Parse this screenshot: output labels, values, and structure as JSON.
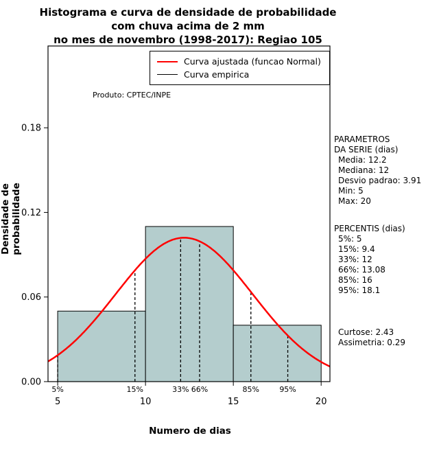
{
  "title": {
    "line1": "Histograma e curva de densidade de probabilidade",
    "line2": "com chuva acima de 2 mm",
    "line3": "no mes de novembro (1998-2017): Regiao 105"
  },
  "axes": {
    "ylabel": "Densidade de probabilidade",
    "xlabel": "Numero de dias"
  },
  "legend": {
    "fitted": "Curva ajustada (funcao Normal)",
    "empirical": "Curva empirica"
  },
  "product_note": "Produto: CPTEC/INPE",
  "stats_panel": {
    "params_title1": "PARAMETROS",
    "params_title2": "DA SERIE (dias)",
    "params": [
      "Media: 12.2",
      "Mediana: 12",
      "Desvio padrao: 3.91",
      "Min: 5",
      "Max: 20"
    ],
    "percentis_title": "PERCENTIS (dias)",
    "percentis": [
      "5%: 5",
      "15%: 9.4",
      "33%: 12",
      "66%: 13.08",
      "85%: 16",
      "95%: 18.1"
    ],
    "kurtosis": "Curtose: 2.43",
    "skewness": "Assimetria: 0.29"
  },
  "colors": {
    "bar_fill": "#b4cdcd",
    "bar_stroke": "#000000",
    "fitted_curve": "#ff0000",
    "empirical_curve": "#000000",
    "dashed_line": "#000000",
    "axis": "#000000"
  },
  "chart_data": {
    "type": "bar",
    "subtype": "histogram-with-density-curve",
    "title": "Histograma e curva de densidade de probabilidade com chuva acima de 2 mm no mes de novembro (1998-2017): Regiao 105",
    "xlabel": "Numero de dias",
    "ylabel": "Densidade de probabilidade",
    "xlim": [
      4.45,
      20.5
    ],
    "ylim": [
      0,
      0.238
    ],
    "x_ticks": [
      5,
      10,
      15,
      20
    ],
    "y_ticks": [
      0.0,
      0.06,
      0.12,
      0.18
    ],
    "grid": false,
    "legend_position": "top-right-inside",
    "bins": [
      {
        "x0": 5,
        "x1": 10,
        "density": 0.05
      },
      {
        "x0": 10,
        "x1": 15,
        "density": 0.11
      },
      {
        "x0": 15,
        "x1": 20,
        "density": 0.04
      }
    ],
    "series": [
      {
        "name": "Curva ajustada (funcao Normal)",
        "type": "normal-density",
        "mean": 12.2,
        "sd": 3.91,
        "color": "#ff0000"
      },
      {
        "name": "Curva empirica",
        "type": "histogram-outline",
        "color": "#000000"
      }
    ],
    "percentiles": [
      {
        "label": "5%",
        "value": 5
      },
      {
        "label": "15%",
        "value": 9.4
      },
      {
        "label": "33%",
        "value": 12
      },
      {
        "label": "66%",
        "value": 13.08
      },
      {
        "label": "85%",
        "value": 16
      },
      {
        "label": "95%",
        "value": 18.1
      }
    ],
    "stats": {
      "media": 12.2,
      "mediana": 12,
      "desvio_padrao": 3.91,
      "min": 5,
      "max": 20,
      "curtose": 2.43,
      "assimetria": 0.29
    }
  }
}
